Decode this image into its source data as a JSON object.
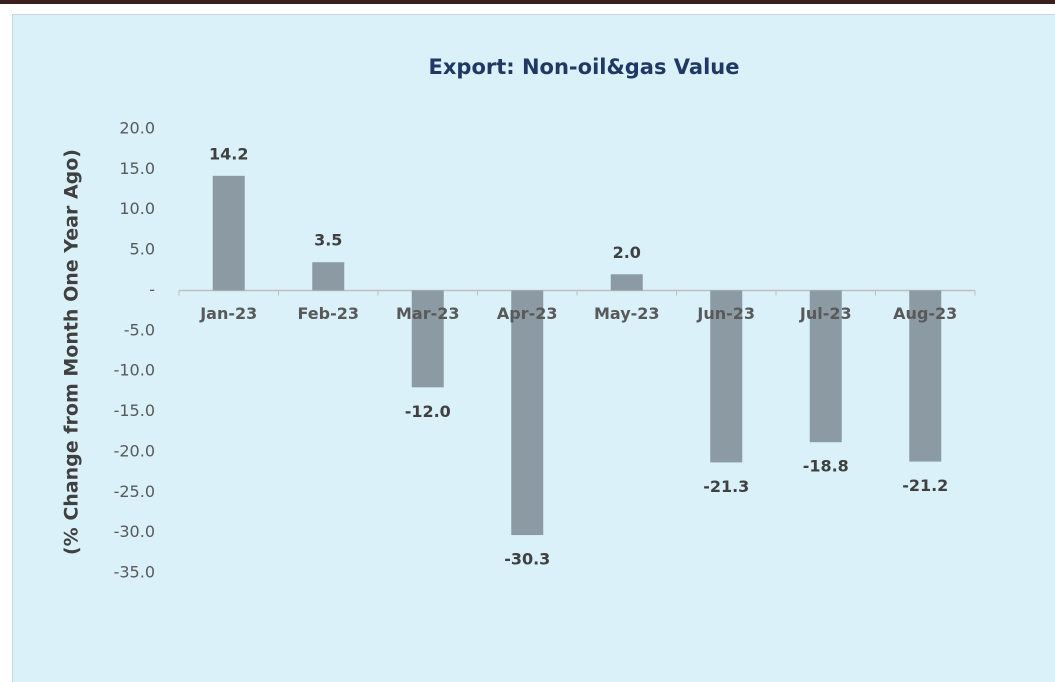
{
  "chart_data": {
    "type": "bar",
    "title": "Export: Non-oil&gas Value",
    "y_label": "(% Change from Month One Year Ago)",
    "categories": [
      "Jan-23",
      "Feb-23",
      "Mar-23",
      "Apr-23",
      "May-23",
      "Jun-23",
      "Jul-23",
      "Aug-23"
    ],
    "values": [
      14.2,
      3.5,
      -12.0,
      -30.3,
      2.0,
      -21.3,
      -18.8,
      -21.2
    ],
    "value_labels": [
      "14.2",
      "3.5",
      "-12.0",
      "-30.3",
      "2.0",
      "-21.3",
      "-18.8",
      "-21.2"
    ],
    "color": "#8c9ba3",
    "ylim": [
      -35,
      20
    ],
    "yticks": [
      {
        "value": 20,
        "label": "20.0"
      },
      {
        "value": 15,
        "label": "15.0"
      },
      {
        "value": 10,
        "label": "10.0"
      },
      {
        "value": 5,
        "label": "5.0"
      },
      {
        "value": 0,
        "label": "-"
      },
      {
        "value": -5,
        "label": "-5.0"
      },
      {
        "value": -10,
        "label": "-10.0"
      },
      {
        "value": -15,
        "label": "-15.0"
      },
      {
        "value": -20,
        "label": "-20.0"
      },
      {
        "value": -25,
        "label": "-25.0"
      },
      {
        "value": -30,
        "label": "-30.0"
      },
      {
        "value": -35,
        "label": "-35.0"
      }
    ],
    "grid": false
  }
}
